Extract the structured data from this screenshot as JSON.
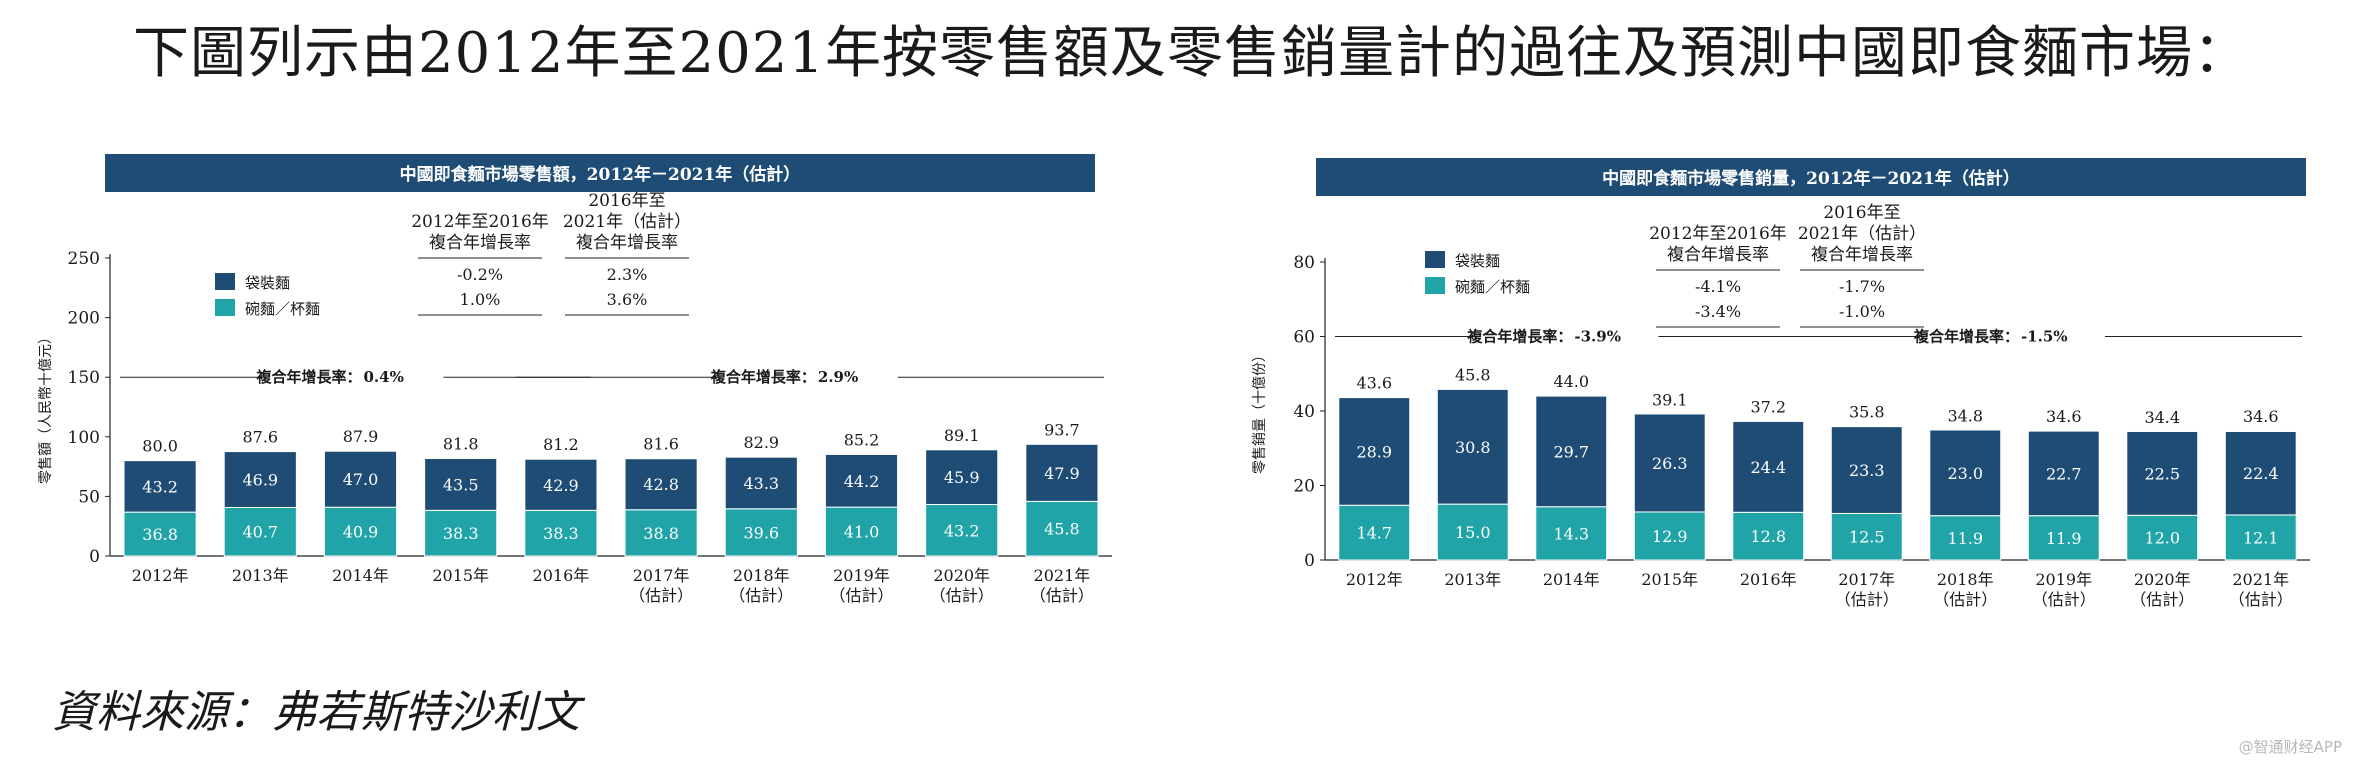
{
  "heading": "下圖列示由2012年至2021年按零售額及零售銷量計的過往及預測中國即食麵市場：",
  "source": "資料來源：弗若斯特沙利文",
  "watermark": "@智通财经APP",
  "colors": {
    "title_bar": "#1f4c74",
    "bagged": "#1f4c74",
    "cup": "#21a4a8",
    "text": "#1a1a1a",
    "title_text": "#ffffff"
  },
  "chart_data": [
    {
      "type": "bar",
      "stacked": true,
      "title": "中國即食麵市場零售額，2012年－2021年（估計）",
      "ylabel": "零售額（人民幣十億元）",
      "ylim": [
        0,
        250
      ],
      "yticks": [
        0,
        50,
        100,
        150,
        200,
        250
      ],
      "categories": [
        "2012年",
        "2013年",
        "2014年",
        "2015年",
        "2016年",
        "2017年\n（估計）",
        "2018年\n（估計）",
        "2019年\n（估計）",
        "2020年\n（估計）",
        "2021年\n（估計）"
      ],
      "series": [
        {
          "name": "碗麵／杯麵",
          "values": [
            36.8,
            40.7,
            40.9,
            38.3,
            38.3,
            38.8,
            39.6,
            41.0,
            43.2,
            45.8
          ]
        },
        {
          "name": "袋裝麵",
          "values": [
            43.2,
            46.9,
            47.0,
            43.5,
            42.9,
            42.8,
            43.3,
            44.2,
            45.9,
            47.9
          ]
        }
      ],
      "totals": [
        80.0,
        87.6,
        87.9,
        81.8,
        81.2,
        81.6,
        82.9,
        85.2,
        89.1,
        93.7
      ],
      "legend": [
        "袋裝麵",
        "碗麵／杯麵"
      ],
      "cagr_table": {
        "headers": [
          "2012年至2016年\n複合年增長率",
          "2016年至\n2021年（估計）\n複合年增長率"
        ],
        "rows": [
          [
            "-0.2%",
            "2.3%"
          ],
          [
            "1.0%",
            "3.6%"
          ]
        ]
      },
      "cagr_lines": [
        {
          "label": "複合年增長率：",
          "value": "0.4%",
          "from": 0,
          "to": 4,
          "y": 150
        },
        {
          "label": "複合年增長率：",
          "value": "2.9%",
          "from": 4,
          "to": 9,
          "y": 150
        }
      ]
    },
    {
      "type": "bar",
      "stacked": true,
      "title": "中國即食麵市場零售銷量，2012年－2021年（估計）",
      "ylabel": "零售銷量（十億份）",
      "ylim": [
        0,
        80
      ],
      "yticks": [
        0,
        20,
        40,
        60,
        80
      ],
      "categories": [
        "2012年",
        "2013年",
        "2014年",
        "2015年",
        "2016年",
        "2017年\n（估計）",
        "2018年\n（估計）",
        "2019年\n（估計）",
        "2020年\n（估計）",
        "2021年\n（估計）"
      ],
      "series": [
        {
          "name": "碗麵／杯麵",
          "values": [
            14.7,
            15.0,
            14.3,
            12.9,
            12.8,
            12.5,
            11.9,
            11.9,
            12.0,
            12.1
          ]
        },
        {
          "name": "袋裝麵",
          "values": [
            28.9,
            30.8,
            29.7,
            26.3,
            24.4,
            23.3,
            23.0,
            22.7,
            22.5,
            22.4
          ]
        }
      ],
      "totals": [
        43.6,
        45.8,
        44.0,
        39.1,
        37.2,
        35.8,
        34.8,
        34.6,
        34.4,
        34.6
      ],
      "legend": [
        "袋裝麵",
        "碗麵／杯麵"
      ],
      "cagr_table": {
        "headers": [
          "2012年至2016年\n複合年增長率",
          "2016年至\n2021年（估計）\n複合年增長率"
        ],
        "rows": [
          [
            "-4.1%",
            "-1.7%"
          ],
          [
            "-3.4%",
            "-1.0%"
          ]
        ]
      },
      "cagr_lines": [
        {
          "label": "複合年增長率：",
          "value": "-3.9%",
          "from": 0,
          "to": 4,
          "y": 60
        },
        {
          "label": "複合年增長率：",
          "value": "-1.5%",
          "from": 4,
          "to": 9,
          "y": 60
        }
      ]
    }
  ]
}
